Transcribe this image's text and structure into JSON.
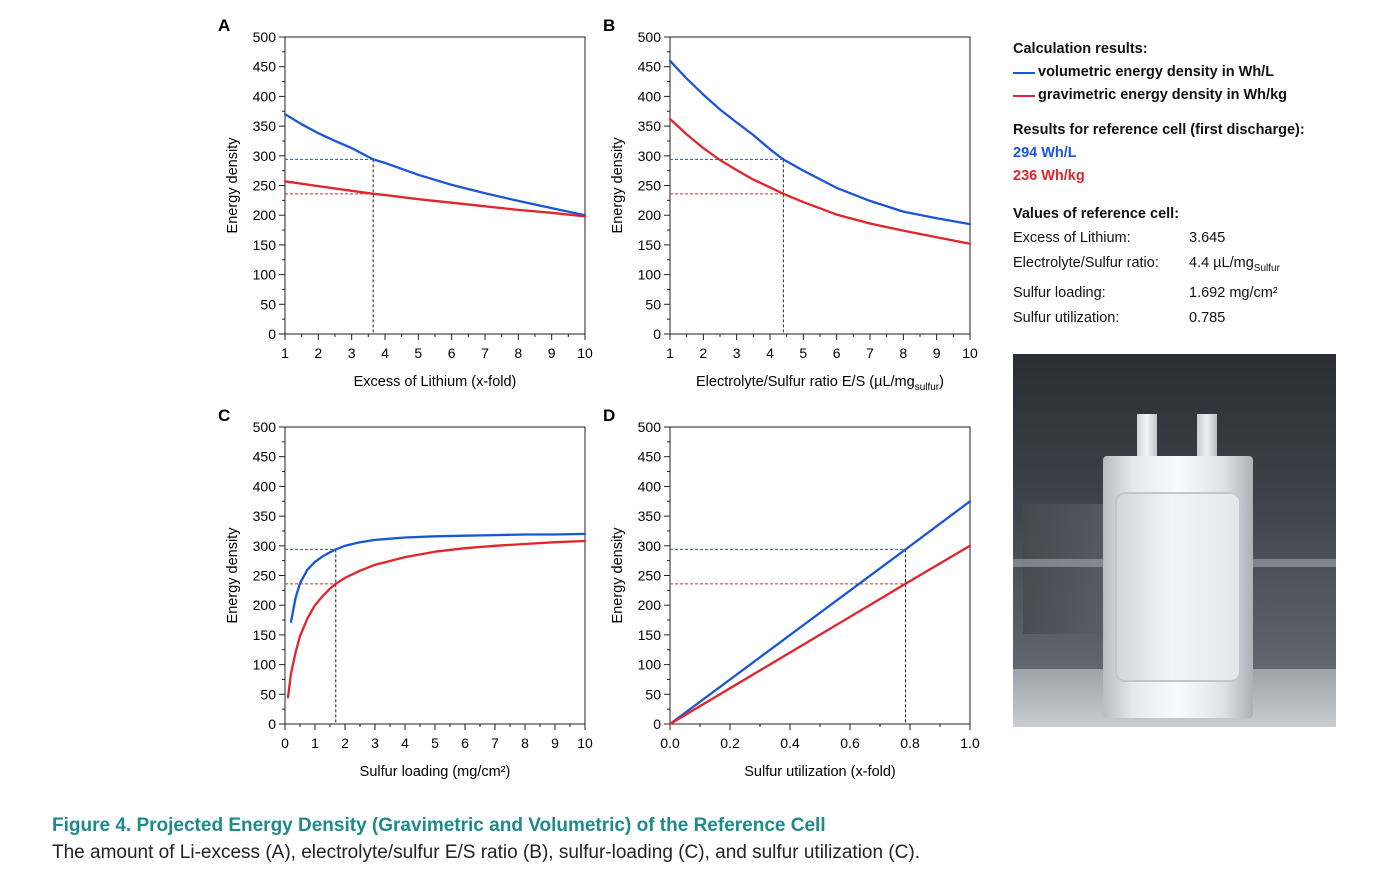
{
  "colors": {
    "volumetric": "#1a56d6",
    "gravimetric": "#e0252b"
  },
  "chart_data": [
    {
      "id": "A",
      "type": "line",
      "xlabel": "Excess of Lithium (x-fold)",
      "ylabel": "Energy density",
      "xlim": [
        1,
        10
      ],
      "ylim": [
        0,
        500
      ],
      "xticks": [
        1,
        2,
        3,
        4,
        5,
        6,
        7,
        8,
        9,
        10
      ],
      "xticklabels": [
        "1",
        "2",
        "3",
        "4",
        "5",
        "6",
        "7",
        "8",
        "9",
        "10"
      ],
      "yticks": [
        0,
        50,
        100,
        150,
        200,
        250,
        300,
        350,
        400,
        450,
        500
      ],
      "yticklabels": [
        "0",
        "50",
        "100",
        "150",
        "200",
        "250",
        "300",
        "350",
        "400",
        "450",
        "500"
      ],
      "series": [
        {
          "name": "volumetric energy density in Wh/L",
          "color": "#1a56d6",
          "x": [
            1,
            1.5,
            2,
            2.5,
            3,
            3.645,
            4,
            5,
            6,
            7,
            8,
            9,
            10
          ],
          "y": [
            370,
            353,
            338,
            325,
            313,
            294,
            288,
            268,
            251,
            237,
            224,
            212,
            200
          ]
        },
        {
          "name": "gravimetric energy density in Wh/kg",
          "color": "#e0252b",
          "x": [
            1,
            2,
            3,
            3.645,
            4,
            5,
            6,
            7,
            8,
            9,
            10
          ],
          "y": [
            257,
            249,
            241,
            236,
            234,
            227,
            221,
            215,
            209,
            204,
            198
          ]
        }
      ],
      "reference": {
        "x": 3.645,
        "y_vol": 294,
        "y_grav": 236
      }
    },
    {
      "id": "B",
      "type": "line",
      "xlabel": "Electrolyte/Sulfur ratio E/S (µL/mg",
      "xlabel_sub": "sulfur",
      "xlabel_end": ")",
      "ylabel": "Energy density",
      "xlim": [
        1,
        10
      ],
      "ylim": [
        0,
        500
      ],
      "xticks": [
        1,
        2,
        3,
        4,
        5,
        6,
        7,
        8,
        9,
        10
      ],
      "xticklabels": [
        "1",
        "2",
        "3",
        "4",
        "5",
        "6",
        "7",
        "8",
        "9",
        "10"
      ],
      "yticks": [
        0,
        50,
        100,
        150,
        200,
        250,
        300,
        350,
        400,
        450,
        500
      ],
      "yticklabels": [
        "0",
        "50",
        "100",
        "150",
        "200",
        "250",
        "300",
        "350",
        "400",
        "450",
        "500"
      ],
      "series": [
        {
          "name": "volumetric energy density in Wh/L",
          "color": "#1a56d6",
          "x": [
            1,
            1.5,
            2,
            2.5,
            3,
            3.5,
            4,
            4.4,
            5,
            6,
            7,
            8,
            9,
            10
          ],
          "y": [
            460,
            430,
            403,
            378,
            356,
            335,
            311,
            294,
            275,
            246,
            224,
            206,
            195,
            185
          ]
        },
        {
          "name": "gravimetric energy density in Wh/kg",
          "color": "#e0252b",
          "x": [
            1,
            1.5,
            2,
            2.5,
            3,
            3.5,
            4,
            4.4,
            5,
            6,
            7,
            8,
            9,
            10
          ],
          "y": [
            362,
            336,
            313,
            293,
            276,
            260,
            247,
            236,
            222,
            201,
            186,
            174,
            163,
            152
          ]
        }
      ],
      "reference": {
        "x": 4.4,
        "y_vol": 294,
        "y_grav": 236
      }
    },
    {
      "id": "C",
      "type": "line",
      "xlabel": "Sulfur loading (mg/cm²)",
      "ylabel": "Energy density",
      "xlim": [
        0,
        10
      ],
      "ylim": [
        0,
        500
      ],
      "xticks": [
        0,
        1,
        2,
        3,
        4,
        5,
        6,
        7,
        8,
        9,
        10
      ],
      "xticklabels": [
        "0",
        "1",
        "2",
        "3",
        "4",
        "5",
        "6",
        "7",
        "8",
        "9",
        "10"
      ],
      "yticks": [
        0,
        50,
        100,
        150,
        200,
        250,
        300,
        350,
        400,
        450,
        500
      ],
      "yticklabels": [
        "0",
        "50",
        "100",
        "150",
        "200",
        "250",
        "300",
        "350",
        "400",
        "450",
        "500"
      ],
      "series": [
        {
          "name": "volumetric energy density in Wh/L",
          "color": "#1a56d6",
          "x": [
            0.2,
            0.35,
            0.5,
            0.75,
            1,
            1.25,
            1.5,
            1.692,
            2,
            2.5,
            3,
            4,
            5,
            6,
            7,
            8,
            9,
            10
          ],
          "y": [
            172,
            212,
            237,
            260,
            273,
            282,
            289,
            294,
            300,
            306,
            310,
            314,
            316,
            317,
            318,
            319,
            319,
            320
          ]
        },
        {
          "name": "gravimetric energy density in Wh/kg",
          "color": "#e0252b",
          "x": [
            0.1,
            0.2,
            0.35,
            0.5,
            0.75,
            1,
            1.25,
            1.5,
            1.692,
            2,
            2.5,
            3,
            4,
            5,
            6,
            7,
            8,
            9,
            10
          ],
          "y": [
            45,
            85,
            120,
            148,
            178,
            200,
            215,
            228,
            236,
            246,
            258,
            268,
            281,
            290,
            296,
            300,
            303,
            306,
            308
          ]
        }
      ],
      "reference": {
        "x": 1.692,
        "y_vol": 294,
        "y_grav": 236
      }
    },
    {
      "id": "D",
      "type": "line",
      "xlabel": "Sulfur utilization (x-fold)",
      "ylabel": "Energy density",
      "xlim": [
        0,
        1
      ],
      "ylim": [
        0,
        500
      ],
      "xticks": [
        0,
        0.2,
        0.4,
        0.6,
        0.8,
        1.0
      ],
      "xticklabels": [
        "0.0",
        "0.2",
        "0.4",
        "0.6",
        "0.8",
        "1.0"
      ],
      "yticks": [
        0,
        50,
        100,
        150,
        200,
        250,
        300,
        350,
        400,
        450,
        500
      ],
      "yticklabels": [
        "0",
        "50",
        "100",
        "150",
        "200",
        "250",
        "300",
        "350",
        "400",
        "450",
        "500"
      ],
      "series": [
        {
          "name": "volumetric energy density in Wh/L",
          "color": "#1a56d6",
          "x": [
            0,
            0.785,
            1
          ],
          "y": [
            0,
            294,
            375
          ]
        },
        {
          "name": "gravimetric energy density in Wh/kg",
          "color": "#e0252b",
          "x": [
            0,
            0.785,
            1
          ],
          "y": [
            0,
            236,
            300
          ]
        }
      ],
      "reference": {
        "x": 0.785,
        "y_vol": 294,
        "y_grav": 236
      }
    }
  ],
  "info": {
    "calc_title": "Calculation results:",
    "legend_vol": "volumetric energy density in Wh/L",
    "legend_grav": "gravimetric energy density in Wh/kg",
    "ref_title": "Results for reference cell (first discharge):",
    "ref_vol": "294 Wh/L",
    "ref_grav": "236 Wh/kg",
    "values_title": "Values of reference cell:",
    "rows": [
      {
        "key": "Excess of Lithium:",
        "value": "3.645"
      },
      {
        "key": "Electrolyte/Sulfur ratio:",
        "value": "4.4 µL/mg",
        "value_sub": "Sulfur"
      },
      {
        "key": "Sulfur loading:",
        "value": "1.692 mg/cm²"
      },
      {
        "key": "Sulfur utilization:",
        "value": "0.785"
      }
    ]
  },
  "caption": {
    "title": "Figure 4.  Projected Energy Density (Gravimetric and Volumetric) of the Reference Cell",
    "text": "The amount of Li-excess (A), electrolyte/sulfur E/S ratio (B), sulfur-loading (C), and sulfur utilization (C)."
  }
}
